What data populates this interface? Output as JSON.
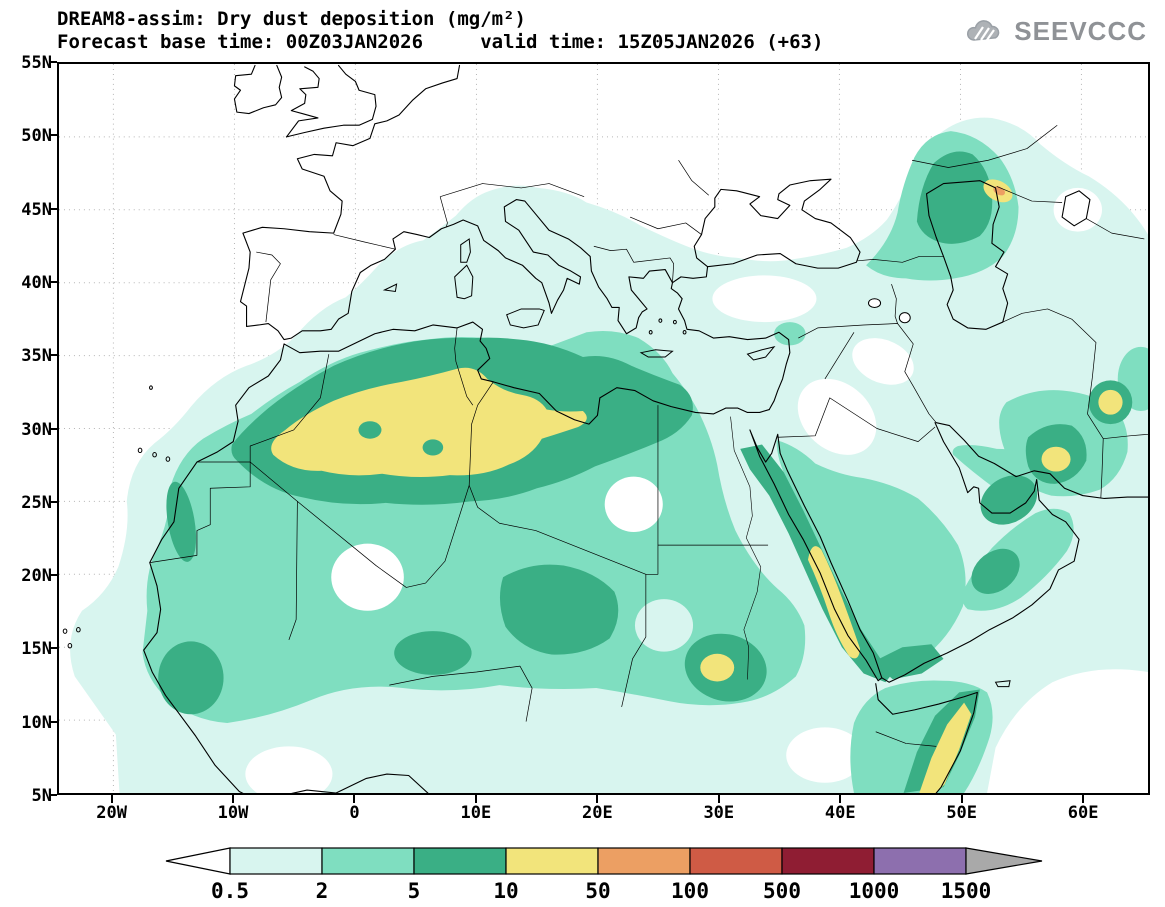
{
  "header": {
    "title_line1": "DREAM8-assim: Dry dust deposition (mg/m²)",
    "title_line2": "Forecast base time: 00Z03JAN2026     valid time: 15Z05JAN2026 (+63)",
    "logo_text": "SEEVCCC"
  },
  "map": {
    "lat_labels": [
      "55N",
      "50N",
      "45N",
      "40N",
      "35N",
      "30N",
      "25N",
      "20N",
      "15N",
      "10N",
      "5N"
    ],
    "lon_labels": [
      "20W",
      "10W",
      "0",
      "10E",
      "20E",
      "30E",
      "40E",
      "50E",
      "60E"
    ]
  },
  "colorbar": {
    "labels": [
      "0.5",
      "2",
      "5",
      "10",
      "50",
      "100",
      "500",
      "1000",
      "1500"
    ],
    "cell_colors": [
      "#d8f5ef",
      "#7fdec0",
      "#3aaf85",
      "#f2e47b",
      "#ec9f63",
      "#cf5b45",
      "#8f1d33",
      "#8d6fae"
    ],
    "arrow_low_color": "#ffffff",
    "arrow_high_color": "#a9a9a9"
  },
  "palette": {
    "lt05_2": "#d8f5ef",
    "lt2_5": "#7fdec0",
    "lt5_10": "#3aaf85",
    "lt10_50": "#f2e47b",
    "lt50_100": "#ec9f63",
    "white": "#ffffff",
    "coastline": "#000000",
    "grid": "#b5b5b5",
    "logo_gray": "#9aa0a6"
  }
}
